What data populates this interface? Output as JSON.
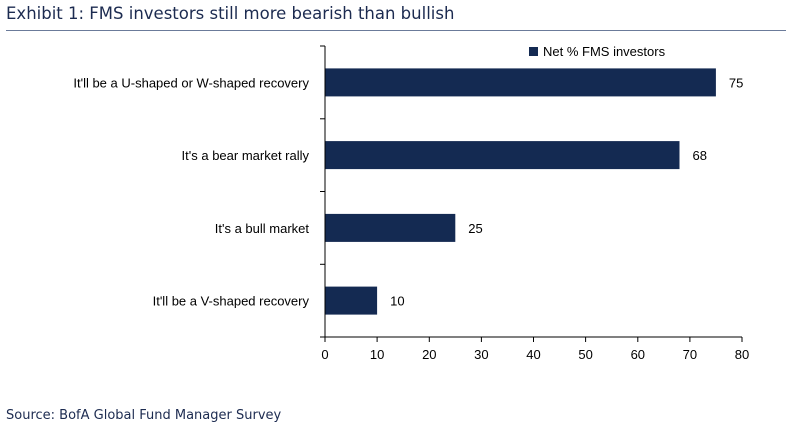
{
  "header": {
    "title": "Exhibit 1: FMS investors still more bearish than bullish"
  },
  "footer": {
    "source": "Source: BofA Global Fund Manager Survey"
  },
  "colors": {
    "bar": "#142a52",
    "title": "#1c2b50",
    "axis": "#000000"
  },
  "chart_data": {
    "type": "bar",
    "orientation": "horizontal",
    "categories": [
      "It'll be a U-shaped or W-shaped recovery",
      "It's a bear market rally",
      "It's a bull market",
      "It'll be a V-shaped recovery"
    ],
    "series": [
      {
        "name": "Net % FMS investors",
        "values": [
          75,
          68,
          25,
          10
        ]
      }
    ],
    "data_labels": [
      "75",
      "68",
      "25",
      "10"
    ],
    "xlim": [
      0,
      80
    ],
    "x_ticks": [
      0,
      10,
      20,
      30,
      40,
      50,
      60,
      70,
      80
    ],
    "title": "",
    "xlabel": "",
    "ylabel": "",
    "grid": false,
    "legend_position": "top-right"
  }
}
